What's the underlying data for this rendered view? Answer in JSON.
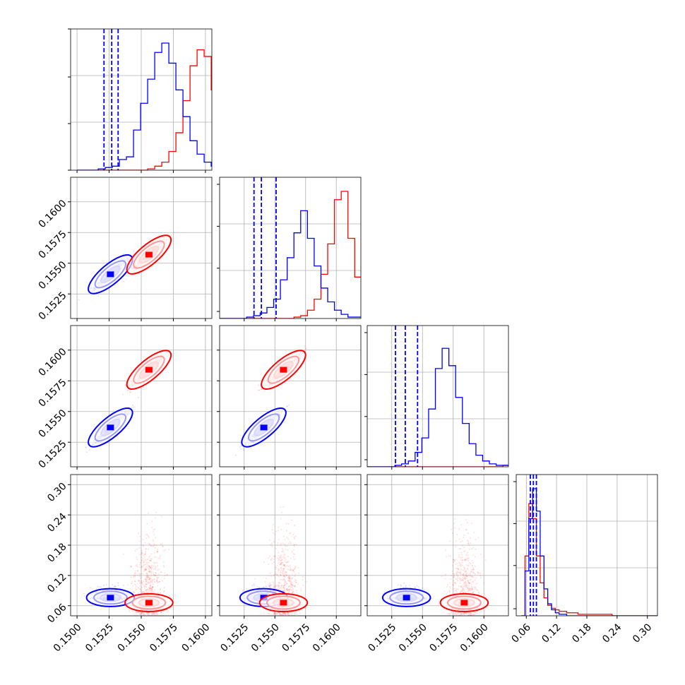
{
  "chart_data": {
    "type": "corner",
    "n_params": 4,
    "grid": true,
    "series": [
      {
        "color": "#0000ff",
        "hist": [
          {
            "edges_lo": 0.15,
            "step": 0.00055,
            "counts": [
              0,
              0,
              0,
              1,
              2,
              3,
              8,
              10,
              30,
              50,
              68,
              88,
              95,
              80,
              60,
              40,
              22,
              12,
              6,
              3,
              2,
              1,
              1,
              0,
              0,
              0,
              0,
              0,
              0,
              0
            ],
            "quantiles": [
              0.1521,
              0.1527,
              0.1532
            ]
          },
          {
            "edges_lo": 0.1505,
            "step": 0.00055,
            "counts": [
              0,
              0,
              0,
              0,
              1,
              2,
              4,
              8,
              14,
              28,
              44,
              62,
              78,
              58,
              38,
              22,
              12,
              6,
              3,
              1,
              1,
              0,
              0,
              0,
              0,
              0,
              0,
              0,
              0,
              0
            ],
            "quantiles": [
              0.1533,
              0.1539,
              0.1551
            ]
          },
          {
            "edges_lo": 0.15,
            "step": 0.00055,
            "counts": [
              0,
              0,
              0,
              0,
              0,
              1,
              2,
              4,
              10,
              20,
              40,
              68,
              82,
              70,
              48,
              30,
              16,
              8,
              4,
              2,
              1,
              1,
              0,
              0,
              0,
              0,
              0,
              0,
              0,
              0
            ],
            "quantiles": [
              0.1528,
              0.1536,
              0.1546
            ]
          },
          {
            "edges_lo": 0.05,
            "step": 0.0075,
            "counts": [
              0,
              30,
              65,
              85,
              70,
              40,
              18,
              8,
              4,
              2,
              1,
              1,
              0,
              0,
              0,
              0,
              0,
              0,
              0,
              0,
              0,
              0,
              0,
              0,
              0,
              0,
              0,
              0,
              0,
              0,
              0,
              0,
              0,
              0,
              0,
              0,
              0,
              0
            ],
            "quantiles": [
              0.068,
              0.074,
              0.08
            ]
          }
        ],
        "centers": [
          0.1526,
          0.1541,
          0.1537,
          0.076
        ]
      },
      {
        "color": "#ff0000",
        "hist": [
          {
            "edges_lo": 0.15,
            "step": 0.00055,
            "counts": [
              0,
              0,
              0,
              0,
              0,
              0,
              0,
              0,
              0,
              0,
              1,
              3,
              6,
              14,
              28,
              52,
              78,
              90,
              85,
              60,
              32,
              14,
              6,
              2,
              1,
              0,
              0,
              0,
              0,
              0
            ],
            "quantiles": null
          },
          {
            "edges_lo": 0.1505,
            "step": 0.00055,
            "counts": [
              0,
              0,
              0,
              0,
              0,
              0,
              0,
              0,
              0,
              0,
              0,
              1,
              2,
              6,
              14,
              32,
              54,
              86,
              92,
              58,
              30,
              14,
              5,
              2,
              1,
              1,
              0,
              0,
              0,
              0
            ],
            "quantiles": null
          },
          {
            "edges_lo": 0.15,
            "step": 0.00055,
            "counts": [
              0,
              0,
              0,
              0,
              0,
              0,
              0,
              0,
              0,
              0,
              0,
              0,
              0,
              0,
              0,
              0,
              0,
              0,
              0,
              0,
              0,
              1,
              2,
              5,
              12,
              26,
              46,
              68,
              88,
              74,
              40,
              16,
              6,
              2,
              1,
              0
            ],
            "quantiles": null
          },
          {
            "edges_lo": 0.05,
            "step": 0.0075,
            "counts": [
              0,
              40,
              75,
              65,
              40,
              22,
              12,
              7,
              5,
              4,
              3,
              3,
              2,
              2,
              2,
              1,
              1,
              1,
              1,
              1,
              1,
              1,
              1,
              1,
              0,
              0,
              0,
              0,
              0,
              0,
              0,
              0,
              0,
              0,
              0,
              0,
              0,
              0
            ],
            "quantiles": null
          }
        ],
        "centers": [
          0.1556,
          0.1557,
          0.1584,
          0.066
        ]
      }
    ],
    "axes": [
      {
        "ticks": [
          "0.1500",
          "0.1525",
          "0.1550",
          "0.1575",
          "0.1600"
        ],
        "tick_values": [
          0.15,
          0.1525,
          0.155,
          0.1575,
          0.16
        ],
        "range": [
          0.1495,
          0.1605
        ]
      },
      {
        "ticks": [
          "0.1525",
          "0.1550",
          "0.1575",
          "0.1600"
        ],
        "tick_values": [
          0.1525,
          0.155,
          0.1575,
          0.16
        ],
        "range": [
          0.1505,
          0.162
        ]
      },
      {
        "ticks": [
          "0.1525",
          "0.1550",
          "0.1575",
          "0.1600"
        ],
        "tick_values": [
          0.1525,
          0.155,
          0.1575,
          0.16
        ],
        "range": [
          0.1505,
          0.162
        ]
      },
      {
        "ticks": [
          "0.06",
          "0.12",
          "0.18",
          "0.24",
          "0.30"
        ],
        "tick_values": [
          0.06,
          0.12,
          0.18,
          0.24,
          0.3
        ],
        "range": [
          0.04,
          0.32
        ]
      }
    ]
  }
}
